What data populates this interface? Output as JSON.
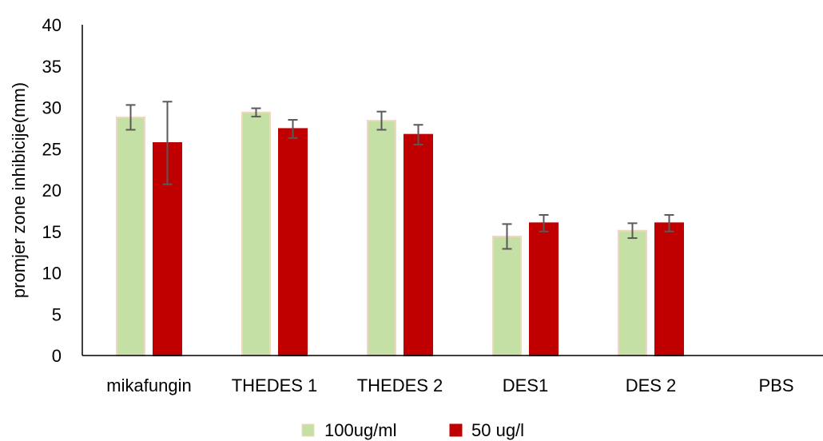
{
  "chart_data": {
    "type": "bar",
    "title": "",
    "xlabel": "",
    "ylabel": "promjer zone inhibicije(mm)",
    "ylim": [
      0,
      40
    ],
    "yticks": [
      0,
      5,
      10,
      15,
      20,
      25,
      30,
      35,
      40
    ],
    "grid": false,
    "legend_position": "bottom",
    "categories": [
      "mikafungin",
      "THEDES 1",
      "THEDES 2",
      "DES1",
      "DES 2",
      "PBS"
    ],
    "series": [
      {
        "name": "100ug/ml",
        "color": "#c5e0a5",
        "border_color": "#f2d7c0",
        "values": [
          28.8,
          29.4,
          28.4,
          14.4,
          15.1,
          null
        ],
        "error": [
          1.5,
          0.5,
          1.1,
          1.5,
          0.9,
          null
        ]
      },
      {
        "name": "50 ug/l",
        "color": "#c00000",
        "border_color": "#c00000",
        "values": [
          25.7,
          27.4,
          26.7,
          16.0,
          16.0,
          null
        ],
        "error": [
          5.0,
          1.1,
          1.2,
          1.0,
          1.0,
          null
        ]
      }
    ]
  }
}
